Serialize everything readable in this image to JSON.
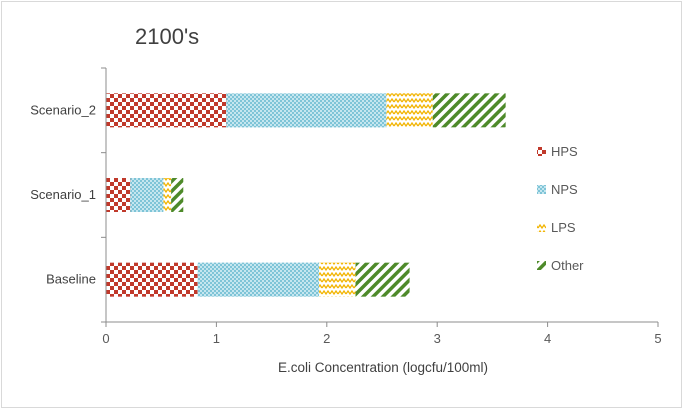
{
  "chart_data": {
    "type": "bar",
    "orientation": "horizontal",
    "stacked": true,
    "title": "2100's",
    "xlabel": "E.coli Concentration (logcfu/100ml)",
    "ylabel": "",
    "xlim": [
      0,
      5
    ],
    "xticks": [
      "0",
      "1",
      "2",
      "3",
      "4",
      "5"
    ],
    "categories": [
      "Baseline",
      "Scenario_1",
      "Scenario_2"
    ],
    "series": [
      {
        "name": "HPS",
        "values": [
          0.83,
          0.22,
          1.09
        ],
        "color": "#c0392b",
        "pattern": "checker"
      },
      {
        "name": "NPS",
        "values": [
          1.1,
          0.3,
          1.45
        ],
        "color": "#4bacc6",
        "pattern": "dots"
      },
      {
        "name": "LPS",
        "values": [
          0.33,
          0.07,
          0.42
        ],
        "color": "#f2b400",
        "pattern": "zigzag"
      },
      {
        "name": "Other",
        "values": [
          0.49,
          0.11,
          0.66
        ],
        "color": "#4e8a2a",
        "pattern": "diagonal"
      }
    ],
    "grid": false,
    "legend_position": "right"
  }
}
